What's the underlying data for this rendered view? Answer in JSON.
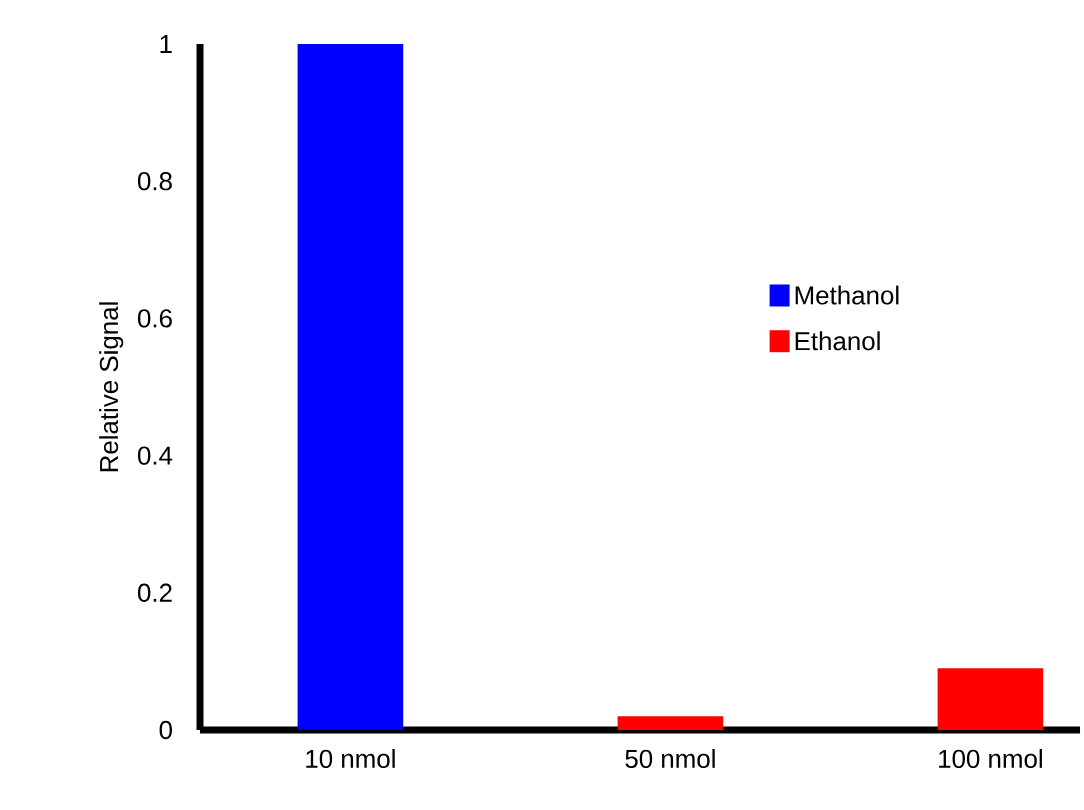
{
  "chart_data": {
    "type": "bar",
    "ylabel": "Relative Signal",
    "categories": [
      "10 nmol",
      "50 nmol",
      "100 nmol"
    ],
    "series": [
      {
        "name": "Methanol",
        "color": "#0000ff",
        "values": [
          1.0,
          null,
          null
        ]
      },
      {
        "name": "Ethanol",
        "color": "#ff0000",
        "values": [
          null,
          0.02,
          0.09
        ]
      }
    ],
    "ylim": [
      0,
      1
    ],
    "yticks": [
      0,
      0.2,
      0.4,
      0.6,
      0.8,
      1
    ],
    "legend": "right",
    "grid": false
  }
}
